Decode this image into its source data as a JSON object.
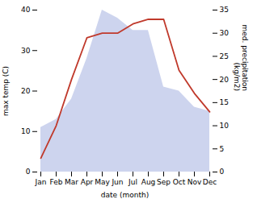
{
  "chart_data": {
    "type": "line",
    "categories": [
      "Jan",
      "Feb",
      "Mar",
      "Apr",
      "May",
      "Jun",
      "Jul",
      "Aug",
      "Sep",
      "Oct",
      "Nov",
      "Dec"
    ],
    "series": [
      {
        "type": "area",
        "color": "#bcc5e8",
        "values": [
          11,
          13,
          18,
          28,
          40,
          38,
          35,
          35,
          21,
          20,
          16,
          15
        ]
      },
      {
        "type": "line",
        "color": "#c0392b",
        "axis": "y2",
        "values": [
          3,
          10,
          20,
          29,
          30,
          30,
          32,
          33,
          33,
          22,
          17,
          13
        ]
      }
    ],
    "xlabel": "date (month)",
    "ylabel": "max temp (C)",
    "y2label": "med. precipitation\n(kg/m2)",
    "ylim": [
      0,
      40
    ],
    "yticks": [
      0,
      10,
      20,
      30,
      40
    ],
    "y2lim": [
      0,
      35
    ],
    "y2ticks": [
      0,
      5,
      10,
      15,
      20,
      25,
      30,
      35
    ]
  }
}
